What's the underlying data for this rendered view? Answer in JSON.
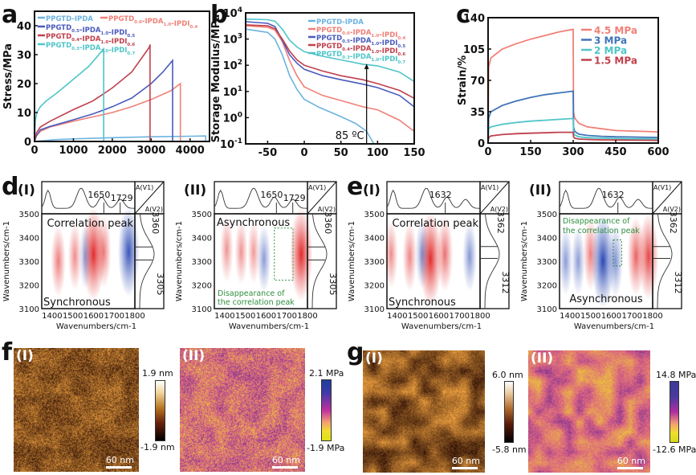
{
  "panel_labels": {
    "a": "a",
    "b": "b",
    "c": "c",
    "d": "d",
    "e": "e",
    "f": "f",
    "g": "g"
  },
  "sub_labels": {
    "i": "(I)",
    "ii": "(II)"
  },
  "colors": {
    "light_blue": "#6cb3df",
    "salmon": "#f08078",
    "blue": "#4a5bbd",
    "red": "#c0404c",
    "teal": "#4fc5c8",
    "steel_blue": "#3f74b8",
    "green_dash": "#2f8f3f"
  },
  "chart_data": [
    {
      "id": "a",
      "type": "line",
      "title": "",
      "xlabel": "Strain/%",
      "ylabel": "Stress/MPa",
      "xlim": [
        0,
        4500
      ],
      "ylim": [
        0,
        45
      ],
      "xticks": [
        0,
        1000,
        2000,
        3000,
        4000
      ],
      "yticks": [
        0,
        10,
        20,
        30,
        40
      ],
      "legend": "top",
      "series": [
        {
          "name": "PPGTD-IPDA",
          "label_html": "PPGTD-IPDA",
          "color": "#6cb3df",
          "x": [
            0,
            500,
            1000,
            2000,
            3000,
            4000,
            4400,
            4400
          ],
          "y": [
            0,
            0.6,
            0.9,
            1.3,
            1.6,
            1.8,
            1.9,
            0
          ]
        },
        {
          "name": "PPGTD0.6-IPDA1.0-IPDI0.4",
          "label_html": "PPGTD<sub>0.6</sub>-IPDA<sub>1.0</sub>-IPDI<sub>0.4</sub>",
          "color": "#f08078",
          "x": [
            0,
            50,
            150,
            400,
            1000,
            1500,
            2000,
            2500,
            3000,
            3500,
            3750,
            3750
          ],
          "y": [
            0,
            2,
            3.5,
            5,
            7,
            8.5,
            10,
            12,
            14.5,
            17.5,
            20,
            0
          ]
        },
        {
          "name": "PPGTD0.5-IPDA1.0-IPDI0.5",
          "label_html": "PPGTD<sub>0.5</sub>-IPDA<sub>1.0</sub>-IPDI<sub>0.5</sub>",
          "color": "#4a5bbd",
          "x": [
            0,
            50,
            150,
            400,
            1000,
            1500,
            2000,
            2500,
            3000,
            3300,
            3550,
            3550
          ],
          "y": [
            0,
            2,
            4,
            5.2,
            7.5,
            9.5,
            12,
            15,
            20,
            24,
            28,
            0
          ]
        },
        {
          "name": "PPGTD0.4-IPDA1.0-IPDI0.6",
          "label_html": "PPGTD<sub>0.4</sub>-IPDA<sub>1.0</sub>-IPDI<sub>0.6</sub>",
          "color": "#c0404c",
          "x": [
            0,
            50,
            150,
            400,
            1000,
            1500,
            2000,
            2500,
            2950,
            2970,
            2970
          ],
          "y": [
            0,
            3,
            5,
            7,
            11,
            14,
            18.5,
            24,
            32.5,
            33.5,
            0
          ]
        },
        {
          "name": "PPGTD0.3-IPDA1.0-IPDI0.7",
          "label_html": "PPGTD<sub>0.3</sub>-IPDA<sub>1.0</sub>-IPDI<sub>0.7</sub>",
          "color": "#4fc5c8",
          "x": [
            0,
            20,
            60,
            150,
            300,
            600,
            1000,
            1400,
            1780,
            1780
          ],
          "y": [
            0,
            7,
            10,
            12,
            14,
            17,
            21.5,
            26,
            32,
            0
          ]
        }
      ]
    },
    {
      "id": "b",
      "type": "line",
      "title": "",
      "xlabel": "Temperature/°C",
      "ylabel": "Storage Modulus/MPa",
      "yscale": "log",
      "xlim": [
        -80,
        150
      ],
      "ylim": [
        0.1,
        10000
      ],
      "xticks": [
        -50,
        0,
        50,
        100,
        150
      ],
      "yticks": [
        "10^-1",
        "10^0",
        "10^1",
        "10^2",
        "10^3",
        "10^4"
      ],
      "legend": "top-right",
      "annotation": "85 ºC",
      "series": [
        {
          "name": "PPGTD-IPDA",
          "label_html": "PPGTD-IPDA",
          "color": "#6cb3df",
          "x": [
            -80,
            -50,
            -40,
            -30,
            -20,
            -10,
            0,
            20,
            50,
            70,
            85,
            95
          ],
          "y": [
            2400,
            1800,
            1000,
            250,
            40,
            12,
            5,
            2.5,
            1.1,
            0.6,
            0.3,
            0.1
          ]
        },
        {
          "name": "PPGTD0.6-IPDA1.0-IPDI0.4",
          "label_html": "PPGTD<sub>0.6</sub>-IPDA<sub>1.0</sub>-IPDI<sub>0.4</sub>",
          "color": "#f08078",
          "x": [
            -80,
            -50,
            -40,
            -30,
            -20,
            -10,
            0,
            25,
            50,
            80,
            100,
            130,
            150
          ],
          "y": [
            3200,
            2800,
            2200,
            800,
            150,
            40,
            15,
            7,
            4.5,
            2.6,
            2,
            0.8,
            0.3
          ]
        },
        {
          "name": "PPGTD0.5-IPDA1.0-IPDI0.5",
          "label_html": "PPGTD<sub>0.5</sub>-IPDA<sub>1.0</sub>-IPDI<sub>0.5</sub>",
          "color": "#4a5bbd",
          "x": [
            -80,
            -50,
            -40,
            -30,
            -20,
            -10,
            0,
            25,
            50,
            80,
            100,
            130,
            150
          ],
          "y": [
            4600,
            4000,
            3000,
            900,
            250,
            120,
            70,
            40,
            28,
            19,
            14,
            7,
            2.6
          ]
        },
        {
          "name": "PPGTD0.4-IPDA1.0-IPDI0.6",
          "label_html": "PPGTD<sub>0.4</sub>-IPDA<sub>1.0</sub>-IPDI<sub>0.6</sub>",
          "color": "#c0404c",
          "x": [
            -80,
            -50,
            -40,
            -30,
            -20,
            -10,
            0,
            25,
            50,
            80,
            100,
            130,
            150
          ],
          "y": [
            3500,
            3200,
            2500,
            1000,
            350,
            160,
            100,
            60,
            40,
            28,
            20,
            11,
            5.5
          ]
        },
        {
          "name": "PPGTD0.3-IPDA1.0-IPDI0.7",
          "label_html": "PPGTD<sub>0.3</sub>-IPDA<sub>1.0</sub>-IPDI<sub>0.7</sub>",
          "color": "#4fc5c8",
          "x": [
            -80,
            -50,
            -40,
            -30,
            -20,
            -10,
            0,
            25,
            50,
            80,
            100,
            130,
            150
          ],
          "y": [
            5800,
            5500,
            4800,
            2400,
            900,
            500,
            330,
            220,
            160,
            110,
            95,
            55,
            24
          ]
        }
      ]
    },
    {
      "id": "c",
      "type": "line",
      "title": "",
      "xlabel": "Time/min",
      "ylabel": "Strain/%",
      "xlim": [
        0,
        600
      ],
      "ylim": [
        0,
        140
      ],
      "xticks": [
        0,
        150,
        300,
        450,
        600
      ],
      "yticks": [
        0,
        35,
        70,
        105,
        140
      ],
      "legend": "top-right",
      "series": [
        {
          "name": "4.5 MPa",
          "color": "#f08078",
          "x": [
            0,
            2,
            10,
            50,
            100,
            150,
            200,
            250,
            300,
            301,
            305,
            320,
            350,
            400,
            450,
            500,
            550,
            600
          ],
          "y": [
            0,
            85,
            95,
            105,
            111,
            116,
            120,
            124,
            127,
            35,
            28,
            22,
            18,
            16,
            14,
            13.5,
            13,
            12.5
          ]
        },
        {
          "name": "3 MPa",
          "color": "#3f74b8",
          "x": [
            0,
            2,
            10,
            50,
            100,
            150,
            200,
            250,
            300,
            301,
            305,
            320,
            350,
            400,
            450,
            500,
            550,
            600
          ],
          "y": [
            0,
            28,
            35,
            42,
            47,
            51,
            54,
            56,
            58,
            18,
            13,
            10,
            8.5,
            7.5,
            7,
            6.8,
            6.5,
            6.3
          ]
        },
        {
          "name": "2 MPa",
          "color": "#4fc5c8",
          "x": [
            0,
            2,
            10,
            50,
            100,
            150,
            200,
            250,
            300,
            301,
            305,
            320,
            350,
            400,
            450,
            500,
            550,
            600
          ],
          "y": [
            0,
            16,
            18,
            21,
            23,
            24.5,
            25.5,
            26.5,
            27.5,
            12,
            9,
            7,
            6,
            5.5,
            5,
            4.8,
            4.6,
            4.5
          ]
        },
        {
          "name": "1.5 MPa",
          "color": "#c0404c",
          "x": [
            0,
            2,
            10,
            50,
            100,
            150,
            200,
            250,
            300,
            301,
            305,
            320,
            350,
            400,
            450,
            500,
            550,
            600
          ],
          "y": [
            0,
            6,
            8,
            9.5,
            10.5,
            11,
            11.5,
            12,
            12,
            7,
            5.5,
            4.5,
            4,
            3.6,
            3.4,
            3.2,
            3.1,
            3
          ]
        }
      ]
    },
    {
      "id": "d_i",
      "type": "heatmap",
      "title": "Correlation peak",
      "mode": "Synchronous",
      "xlabel": "Wavenumbers/cm-1",
      "ylabel": "Wavenumbers/cm-1",
      "xlim": [
        1350,
        1800
      ],
      "ylim": [
        3100,
        3500
      ],
      "xticks": [
        1400,
        1500,
        1600,
        1700,
        1800
      ],
      "yticks": [
        3100,
        3200,
        3300,
        3400,
        3500
      ],
      "top_peaks": [
        "1650",
        "1729"
      ],
      "side_peaks": [
        "3360",
        "3305"
      ],
      "corner_labels": [
        "A(V1)",
        "A(V2)"
      ],
      "blobs": [
        {
          "x": 1430,
          "y": 3300,
          "sign": "+",
          "intensity": 0.4
        },
        {
          "x": 1510,
          "y": 3320,
          "sign": "+",
          "intensity": 0.3
        },
        {
          "x": 1600,
          "y": 3330,
          "sign": "+",
          "intensity": 1.0
        },
        {
          "x": 1650,
          "y": 3340,
          "sign": "+",
          "intensity": 0.4
        },
        {
          "x": 1560,
          "y": 3320,
          "sign": "-",
          "intensity": 0.2
        },
        {
          "x": 1770,
          "y": 3340,
          "sign": "-",
          "intensity": 0.9
        }
      ]
    },
    {
      "id": "d_ii",
      "type": "heatmap",
      "title": "Asynchronous",
      "mode": "Asynchronous",
      "annotation": "Disappearance of the correlation peak",
      "xlabel": "Wavenumbers/cm-1",
      "ylabel": "Wavenumbers/cm-1",
      "xlim": [
        1350,
        1800
      ],
      "ylim": [
        3100,
        3500
      ],
      "xticks": [
        1400,
        1500,
        1600,
        1700,
        1800
      ],
      "yticks": [
        3100,
        3200,
        3300,
        3400,
        3500
      ],
      "top_peaks": [
        "1650",
        "1729"
      ],
      "side_peaks": [
        "3360",
        "3305"
      ],
      "corner_labels": [
        "A(V1)",
        "A(V2)"
      ],
      "blobs": [
        {
          "x": 1410,
          "y": 3350,
          "sign": "+",
          "intensity": 0.25
        },
        {
          "x": 1480,
          "y": 3340,
          "sign": "+",
          "intensity": 0.25
        },
        {
          "x": 1540,
          "y": 3340,
          "sign": "+",
          "intensity": 0.2
        },
        {
          "x": 1590,
          "y": 3310,
          "sign": "-",
          "intensity": 0.3
        },
        {
          "x": 1770,
          "y": 3330,
          "sign": "+",
          "intensity": 1.0
        }
      ]
    },
    {
      "id": "e_i",
      "type": "heatmap",
      "title": "Correlation peak",
      "mode": "Synchronous",
      "xlabel": "Wavenumbers/cm-1",
      "ylabel": "Wavenumbers/cm-1",
      "xlim": [
        1350,
        1800
      ],
      "ylim": [
        3100,
        3500
      ],
      "xticks": [
        1400,
        1500,
        1600,
        1700,
        1800
      ],
      "yticks": [
        3100,
        3200,
        3300,
        3400,
        3500
      ],
      "top_peaks": [
        "1632"
      ],
      "side_peaks": [
        "3362",
        "3312"
      ],
      "corner_labels": [
        "A(V1)",
        "A(V2)"
      ],
      "blobs": [
        {
          "x": 1370,
          "y": 3330,
          "sign": "+",
          "intensity": 0.3
        },
        {
          "x": 1460,
          "y": 3320,
          "sign": "+",
          "intensity": 0.35
        },
        {
          "x": 1560,
          "y": 3310,
          "sign": "+",
          "intensity": 1.0
        },
        {
          "x": 1630,
          "y": 3330,
          "sign": "+",
          "intensity": 0.5
        },
        {
          "x": 1520,
          "y": 3330,
          "sign": "-",
          "intensity": 0.3
        },
        {
          "x": 1750,
          "y": 3320,
          "sign": "-",
          "intensity": 0.35
        }
      ]
    },
    {
      "id": "e_ii",
      "type": "heatmap",
      "title": "Asynchronous",
      "mode": "Asynchronous",
      "annotation": "Disappearance of the correlation peak",
      "xlabel": "Wavenumbers/cm-1",
      "ylabel": "Wavenumbers/cm-1",
      "xlim": [
        1350,
        1800
      ],
      "ylim": [
        3100,
        3500
      ],
      "xticks": [
        1400,
        1500,
        1600,
        1700,
        1800
      ],
      "yticks": [
        3100,
        3200,
        3300,
        3400,
        3500
      ],
      "top_peaks": [
        "1632"
      ],
      "side_peaks": [
        "3362",
        "3312"
      ],
      "corner_labels": [
        "A(V1)",
        "A(V2)"
      ],
      "blobs": [
        {
          "x": 1380,
          "y": 3300,
          "sign": "-",
          "intensity": 0.3
        },
        {
          "x": 1440,
          "y": 3300,
          "sign": "-",
          "intensity": 0.3
        },
        {
          "x": 1500,
          "y": 3330,
          "sign": "+",
          "intensity": 0.4
        },
        {
          "x": 1560,
          "y": 3300,
          "sign": "-",
          "intensity": 1.0
        },
        {
          "x": 1620,
          "y": 3300,
          "sign": "-",
          "intensity": 0.4
        },
        {
          "x": 1720,
          "y": 3320,
          "sign": "+",
          "intensity": 0.6
        },
        {
          "x": 1780,
          "y": 3320,
          "sign": "+",
          "intensity": 0.8
        }
      ]
    }
  ],
  "afm": {
    "f_i": {
      "label": "(I)",
      "scale_bar": "60 nm",
      "cb_max": "1.9 nm",
      "cb_min": "-1.9 nm",
      "type": "height"
    },
    "f_ii": {
      "label": "(II)",
      "scale_bar": "60 nm",
      "cb_max": "2.1 MPa",
      "cb_min": "-1.9 MPa",
      "type": "modulus"
    },
    "g_i": {
      "label": "(I)",
      "scale_bar": "60 nm",
      "cb_max": "6.0 nm",
      "cb_min": "-5.8 nm",
      "type": "height"
    },
    "g_ii": {
      "label": "(II)",
      "scale_bar": "60 nm",
      "cb_max": "14.8 MPa",
      "cb_min": "-12.6 MPa",
      "type": "modulus"
    }
  }
}
